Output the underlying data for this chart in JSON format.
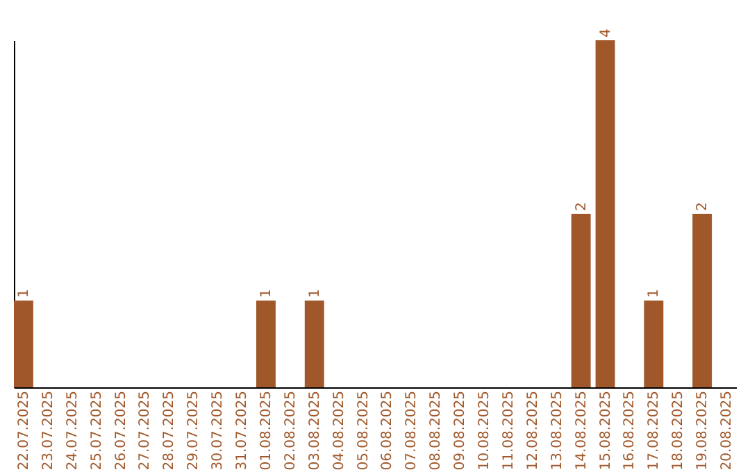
{
  "chart_data": {
    "type": "bar",
    "categories": [
      "22.07.2025",
      "23.07.2025",
      "24.07.2025",
      "25.07.2025",
      "26.07.2025",
      "27.07.2025",
      "28.07.2025",
      "29.07.2025",
      "30.07.2025",
      "31.07.2025",
      "01.08.2025",
      "02.08.2025",
      "03.08.2025",
      "04.08.2025",
      "05.08.2025",
      "06.08.2025",
      "07.08.2025",
      "08.08.2025",
      "09.08.2025",
      "10.08.2025",
      "11.08.2025",
      "12.08.2025",
      "13.08.2025",
      "14.08.2025",
      "15.08.2025",
      "16.08.2025",
      "17.08.2025",
      "18.08.2025",
      "19.08.2025",
      "20.08.2025"
    ],
    "values": [
      1,
      0,
      0,
      0,
      0,
      0,
      0,
      0,
      0,
      0,
      1,
      0,
      1,
      0,
      0,
      0,
      0,
      0,
      0,
      0,
      0,
      0,
      0,
      2,
      4,
      0,
      1,
      0,
      2,
      0
    ],
    "value_labels": [
      "1",
      null,
      null,
      null,
      null,
      null,
      null,
      null,
      null,
      null,
      "1",
      null,
      "1",
      null,
      null,
      null,
      null,
      null,
      null,
      null,
      null,
      null,
      null,
      "2",
      "4",
      null,
      "1",
      null,
      "2",
      null
    ],
    "color": "#a0582a",
    "tick_labels": "x"
  }
}
